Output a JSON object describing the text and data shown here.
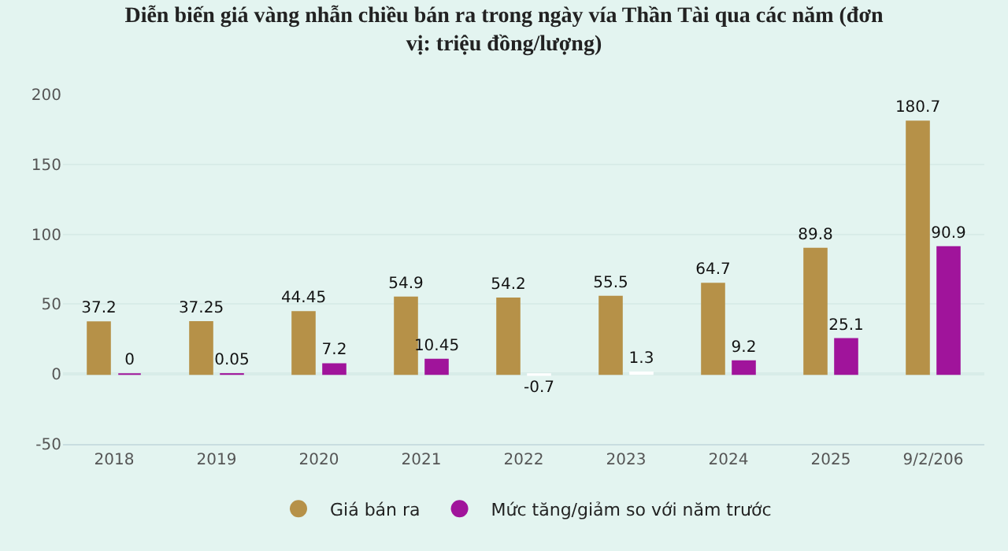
{
  "chart_data": {
    "type": "bar",
    "title": "Diễn biến giá vàng nhẫn chiều bán ra trong ngày vía Thần Tài qua các năm (đơn vị: triệu đồng/lượng)",
    "categories": [
      "2018",
      "2019",
      "2020",
      "2021",
      "2022",
      "2023",
      "2024",
      "2025",
      "9/2/206"
    ],
    "series": [
      {
        "name": "Giá bán ra",
        "color": "#b69148",
        "values": [
          37.2,
          37.25,
          44.45,
          54.9,
          54.2,
          55.5,
          64.7,
          89.8,
          180.7
        ]
      },
      {
        "name": "Mức tăng/giảm so với năm trước",
        "color": "#a0149b",
        "colors": [
          "#a0149b",
          "#a0149b",
          "#a0149b",
          "#a0149b",
          "#ffffff",
          "#ffffff",
          "#a0149b",
          "#a0149b",
          "#a0149b"
        ],
        "values": [
          0,
          0.05,
          7.2,
          10.45,
          -0.7,
          1.3,
          9.2,
          25.1,
          90.9
        ]
      }
    ],
    "ylim": [
      -50,
      200
    ],
    "yticks": [
      -50,
      0,
      50,
      100,
      150,
      200
    ],
    "grid": "y",
    "legend": "bottom",
    "data_labels": true
  }
}
